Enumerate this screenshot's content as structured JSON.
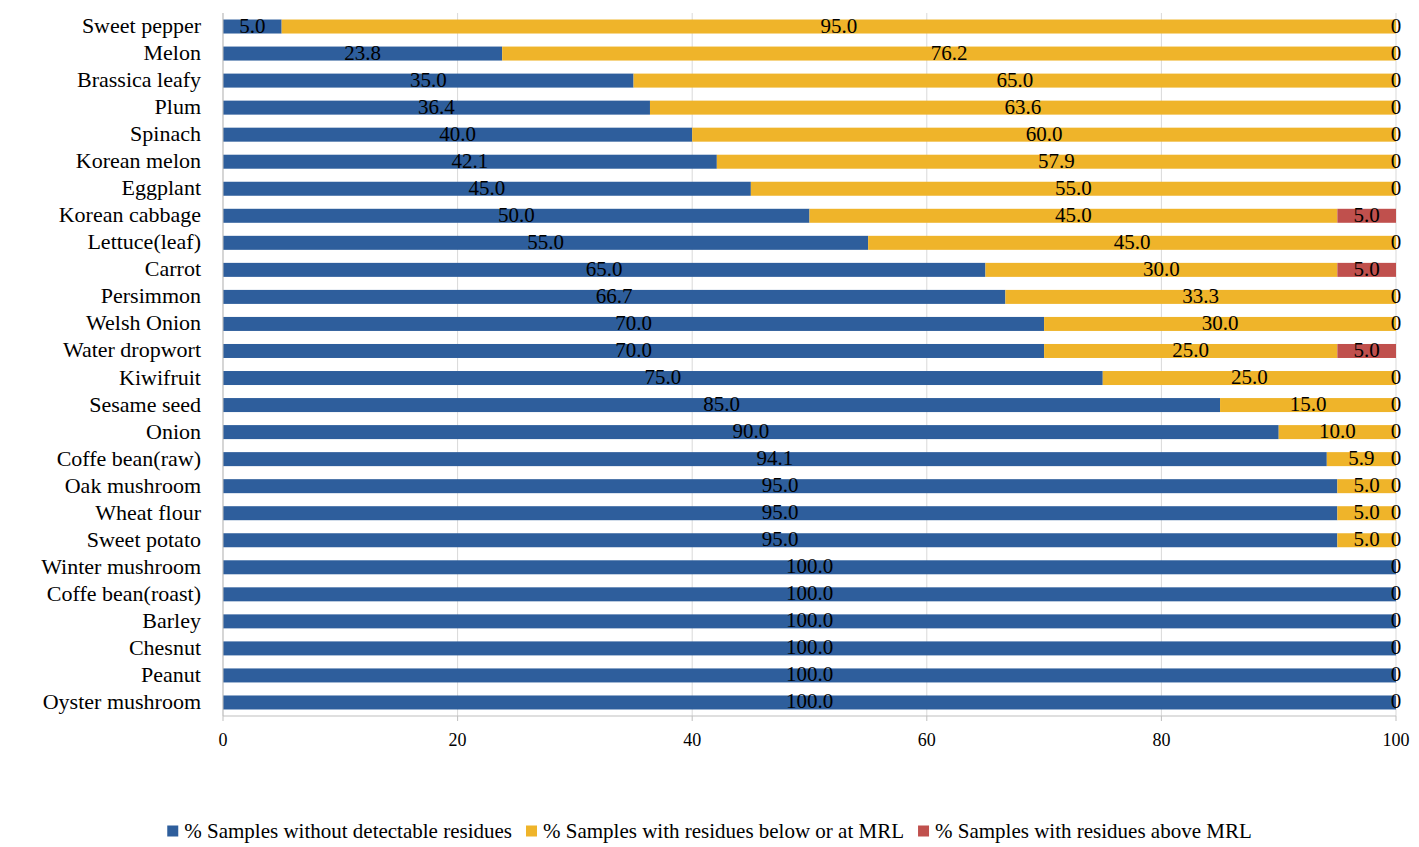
{
  "chart_data": {
    "type": "bar",
    "orientation": "horizontal",
    "stacked": true,
    "data_labels": true,
    "grid": true,
    "legend": "bottom",
    "categories": [
      "Sweet pepper",
      "Melon",
      "Brassica leafy",
      "Plum",
      "Spinach",
      "Korean melon",
      "Eggplant",
      "Korean cabbage",
      "Lettuce(leaf)",
      "Carrot",
      "Persimmon",
      "Welsh Onion",
      "Water dropwort",
      "Kiwifruit",
      "Sesame seed",
      "Onion",
      "Coffe bean(raw)",
      "Oak mushroom",
      "Wheat flour",
      "Sweet potato",
      "Winter mushroom",
      "Coffe bean(roast)",
      "Barley",
      "Chesnut",
      "Peanut",
      "Oyster mushroom"
    ],
    "xlim": [
      0,
      100
    ],
    "xticks": [
      0,
      20,
      40,
      60,
      80,
      100
    ],
    "series": [
      {
        "name": "% Samples without detectable residues",
        "color": "#2e5e9c",
        "values": [
          5.0,
          23.8,
          35.0,
          36.4,
          40.0,
          42.1,
          45.0,
          50.0,
          55.0,
          65.0,
          66.7,
          70.0,
          70.0,
          75.0,
          85.0,
          90.0,
          94.1,
          95.0,
          95.0,
          95.0,
          100,
          100,
          100,
          100,
          100,
          100
        ],
        "value_labels": [
          "5.0",
          "23.8",
          "35.0",
          "36.4",
          "40.0",
          "42.1",
          "45.0",
          "50.0",
          "55.0",
          "65.0",
          "66.7",
          "70.0",
          "70.0",
          "75.0",
          "85.0",
          "90.0",
          "94.1",
          "95.0",
          "95.0",
          "95.0",
          "100.0",
          "100.0",
          "100.0",
          "100.0",
          "100.0",
          "100.0"
        ]
      },
      {
        "name": "% Samples with residues below or at MRL",
        "color": "#efb42a",
        "values": [
          95.0,
          76.2,
          65.0,
          63.6,
          60.0,
          57.9,
          55.0,
          45.0,
          45.0,
          30.0,
          33.3,
          30.0,
          25.0,
          25.0,
          15.0,
          10.0,
          5.9,
          5.0,
          5.0,
          5.0,
          0,
          0,
          0,
          0,
          0,
          0
        ],
        "value_labels": [
          "95.0",
          "76.2",
          "65.0",
          "63.6",
          "60.0",
          "57.9",
          "55.0",
          "45.0",
          "45.0",
          "30.0",
          "33.3",
          "30.0",
          "25.0",
          "25.0",
          "15.0",
          "10.0",
          "5.9",
          "5.0",
          "5.0",
          "5.0",
          null,
          null,
          null,
          null,
          null,
          null
        ]
      },
      {
        "name": "% Samples with residues above MRL",
        "color": "#c0504d",
        "values": [
          0,
          0,
          0,
          0,
          0,
          0,
          0,
          5.0,
          0,
          5.0,
          0,
          0,
          5.0,
          0,
          0,
          0,
          0,
          0,
          0,
          0,
          0,
          0,
          0,
          0,
          0,
          0
        ],
        "value_labels": [
          "0",
          "0",
          "0",
          "0",
          "0",
          "0",
          "0",
          "5.0",
          "0",
          "5.0",
          "0",
          "0",
          "5.0",
          "0",
          "0",
          "0",
          "0",
          "0",
          "0",
          "0",
          "0",
          "0",
          "0",
          "0",
          "0",
          "0"
        ]
      }
    ]
  }
}
